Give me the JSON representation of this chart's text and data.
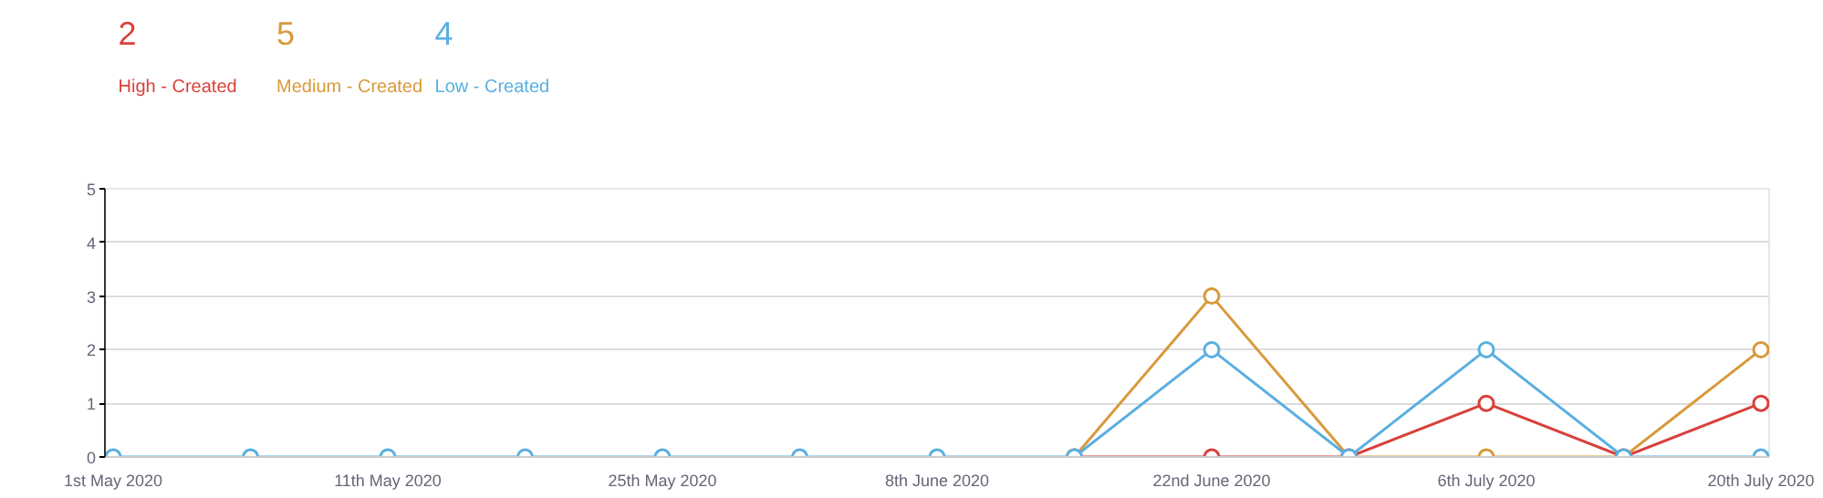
{
  "chart_data": {
    "type": "line",
    "categories": [
      "1st May 2020",
      null,
      "11th May 2020",
      null,
      "25th May 2020",
      null,
      "8th June 2020",
      null,
      "22nd June 2020",
      null,
      "6th July 2020",
      null,
      "20th July 2020"
    ],
    "series": [
      {
        "name": "High - Created",
        "color": "#d9403a",
        "values": [
          null,
          null,
          null,
          null,
          null,
          null,
          null,
          0,
          0,
          0,
          1,
          0,
          1
        ]
      },
      {
        "name": "Medium - Created",
        "color": "#d9993a",
        "values": [
          null,
          null,
          null,
          null,
          null,
          null,
          null,
          0,
          3,
          0,
          0,
          0,
          2
        ]
      },
      {
        "name": "Low - Created",
        "color": "#5aafe0",
        "values": [
          0,
          0,
          0,
          0,
          0,
          0,
          0,
          0,
          2,
          0,
          2,
          0,
          0
        ]
      }
    ],
    "annotations": [
      "2",
      "5",
      "4"
    ],
    "ylim": [
      0,
      5
    ],
    "yticks": [
      0,
      1,
      2,
      3,
      4,
      5
    ],
    "grid": "y",
    "marker": "circle",
    "line_style": "solid"
  }
}
